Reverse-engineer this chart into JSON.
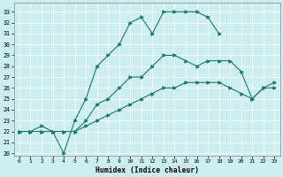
{
  "title": "",
  "xlabel": "Humidex (Indice chaleur)",
  "bg_color": "#cceef0",
  "grid_color": "#ffffff",
  "line_color": "#1a7a6e",
  "xlim": [
    -0.5,
    23.5
  ],
  "ylim": [
    19.8,
    33.8
  ],
  "xticks": [
    0,
    1,
    2,
    3,
    4,
    5,
    6,
    7,
    8,
    9,
    10,
    11,
    12,
    13,
    14,
    15,
    16,
    17,
    18,
    19,
    20,
    21,
    22,
    23
  ],
  "yticks": [
    20,
    21,
    22,
    23,
    24,
    25,
    26,
    27,
    28,
    29,
    30,
    31,
    32,
    33
  ],
  "series1_x": [
    0,
    1,
    2,
    3,
    4,
    5,
    6,
    7,
    8,
    9,
    10,
    11,
    12,
    13,
    14,
    15,
    16,
    17,
    18
  ],
  "series1_y": [
    22,
    22,
    22,
    22,
    20,
    23,
    25,
    28,
    29,
    30,
    32,
    32.5,
    31,
    33,
    33,
    33,
    33,
    32.5,
    31
  ],
  "series2_x": [
    0,
    1,
    2,
    3,
    4,
    5,
    6,
    7,
    8,
    9,
    10,
    11,
    12,
    13,
    14,
    15,
    16,
    17,
    18,
    19,
    20,
    21,
    22,
    23
  ],
  "series2_y": [
    22,
    22,
    22.5,
    22,
    22,
    22,
    23,
    24.5,
    25,
    26,
    27,
    27,
    28,
    29,
    29,
    28.5,
    28,
    28.5,
    28.5,
    28.5,
    27.5,
    25,
    26,
    26
  ],
  "series3_x": [
    0,
    1,
    2,
    3,
    4,
    5,
    6,
    7,
    8,
    9,
    10,
    11,
    12,
    13,
    14,
    15,
    16,
    17,
    18,
    19,
    20,
    21,
    22,
    23
  ],
  "series3_y": [
    22,
    22,
    22,
    22,
    22,
    22,
    22.5,
    23,
    23.5,
    24,
    24.5,
    25,
    25.5,
    26,
    26,
    26.5,
    26.5,
    26.5,
    26.5,
    26,
    25.5,
    25,
    26,
    26.5
  ]
}
